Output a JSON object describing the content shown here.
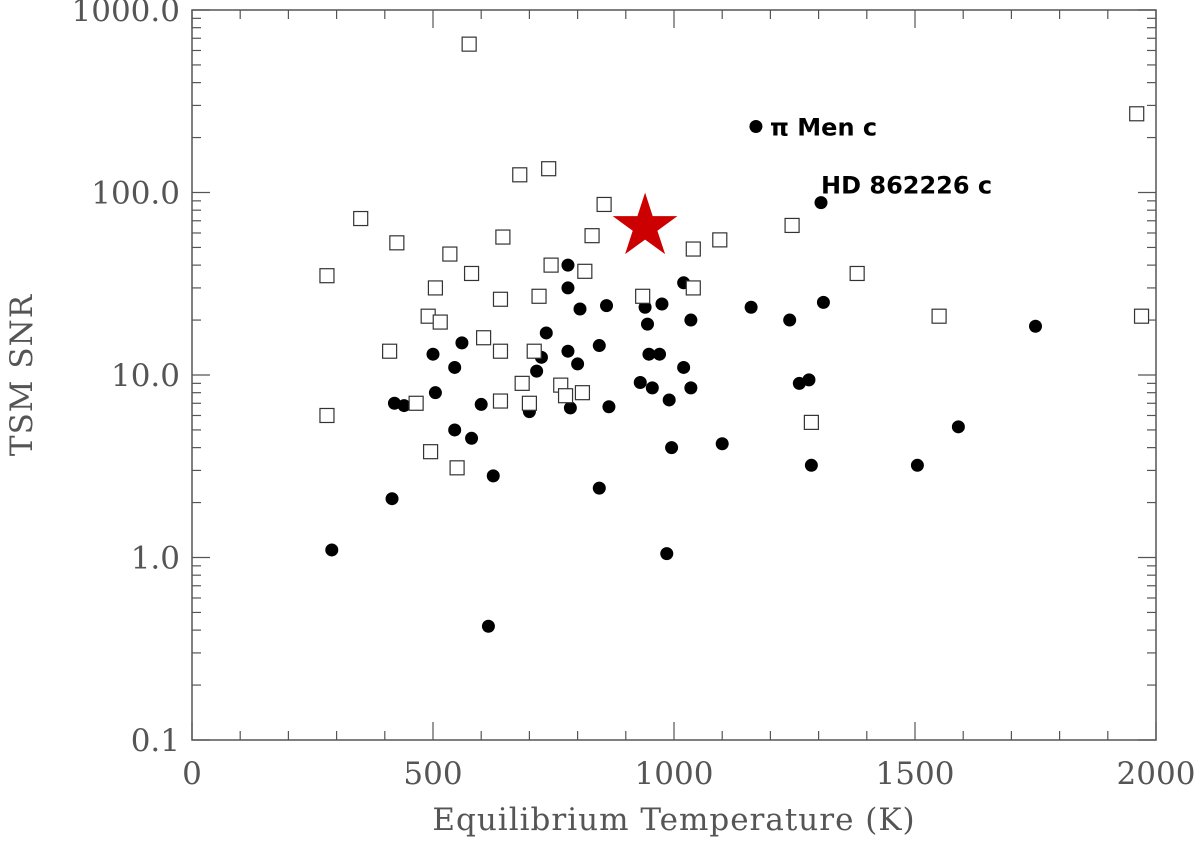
{
  "chart_data": {
    "type": "scatter",
    "xlabel": "Equilibrium Temperature (K)",
    "ylabel": "TSM SNR",
    "xlim": [
      0,
      2000
    ],
    "ylim": [
      0.1,
      1000
    ],
    "yscale": "log",
    "x_ticks": [
      0,
      500,
      1000,
      1500,
      2000
    ],
    "x_tick_labels": [
      "0",
      "500",
      "1000",
      "1500",
      "2000"
    ],
    "y_ticks": [
      0.1,
      1,
      10,
      100,
      1000
    ],
    "y_tick_labels": [
      "0.1",
      "1.0",
      "10.0",
      "100.0",
      "1000.0"
    ],
    "grid": false,
    "colors": {
      "axis": "#555555",
      "points": "#000000",
      "star": "#cc0000"
    },
    "series": [
      {
        "marker": "filled-circle",
        "points": [
          [
            290,
            1.1
          ],
          [
            415,
            2.1
          ],
          [
            420,
            7.0
          ],
          [
            440,
            6.8
          ],
          [
            500,
            13.0
          ],
          [
            505,
            8.0
          ],
          [
            545,
            11.0
          ],
          [
            560,
            15.0
          ],
          [
            545,
            5.0
          ],
          [
            580,
            4.5
          ],
          [
            600,
            6.9
          ],
          [
            625,
            2.8
          ],
          [
            615,
            0.42
          ],
          [
            700,
            6.3
          ],
          [
            715,
            10.5
          ],
          [
            725,
            12.5
          ],
          [
            735,
            17.0
          ],
          [
            780,
            40.0
          ],
          [
            780,
            30.0
          ],
          [
            780,
            13.5
          ],
          [
            785,
            6.6
          ],
          [
            800,
            11.5
          ],
          [
            805,
            23.0
          ],
          [
            845,
            14.5
          ],
          [
            845,
            2.4
          ],
          [
            860,
            24.0
          ],
          [
            865,
            6.7
          ],
          [
            930,
            9.1
          ],
          [
            940,
            23.5
          ],
          [
            945,
            19.0
          ],
          [
            948,
            13.0
          ],
          [
            955,
            8.5
          ],
          [
            970,
            13.0
          ],
          [
            975,
            24.5
          ],
          [
            985,
            1.05
          ],
          [
            990,
            7.3
          ],
          [
            995,
            4.0
          ],
          [
            1020,
            32.0
          ],
          [
            1020,
            11.0
          ],
          [
            1035,
            20.0
          ],
          [
            1035,
            8.5
          ],
          [
            1100,
            4.2
          ],
          [
            1160,
            23.5
          ],
          [
            1170,
            230.0
          ],
          [
            1240,
            20.0
          ],
          [
            1260,
            9.0
          ],
          [
            1280,
            9.4
          ],
          [
            1285,
            3.2
          ],
          [
            1305,
            88.0
          ],
          [
            1310,
            25.0
          ],
          [
            1505,
            3.2
          ],
          [
            1590,
            5.2
          ],
          [
            1750,
            18.5
          ]
        ]
      },
      {
        "marker": "open-square",
        "points": [
          [
            280,
            35.0
          ],
          [
            280,
            6.0
          ],
          [
            350,
            72.0
          ],
          [
            410,
            13.5
          ],
          [
            425,
            53.0
          ],
          [
            465,
            7.0
          ],
          [
            490,
            21.0
          ],
          [
            495,
            3.8
          ],
          [
            505,
            30.0
          ],
          [
            515,
            19.5
          ],
          [
            535,
            46.0
          ],
          [
            550,
            3.1
          ],
          [
            575,
            650.0
          ],
          [
            580,
            36.0
          ],
          [
            605,
            16.0
          ],
          [
            640,
            13.5
          ],
          [
            640,
            7.2
          ],
          [
            640,
            26.0
          ],
          [
            645,
            57.0
          ],
          [
            680,
            125.0
          ],
          [
            685,
            9.0
          ],
          [
            700,
            7.0
          ],
          [
            710,
            13.5
          ],
          [
            720,
            27.0
          ],
          [
            740,
            135.0
          ],
          [
            745,
            40.0
          ],
          [
            765,
            8.8
          ],
          [
            775,
            7.7
          ],
          [
            810,
            8.0
          ],
          [
            815,
            37.0
          ],
          [
            830,
            58.0
          ],
          [
            855,
            86.0
          ],
          [
            935,
            27.0
          ],
          [
            1040,
            49.0
          ],
          [
            1040,
            30.0
          ],
          [
            1095,
            55.0
          ],
          [
            1245,
            66.0
          ],
          [
            1285,
            5.5
          ],
          [
            1380,
            36.0
          ],
          [
            1550,
            21.0
          ],
          [
            1960,
            270.0
          ],
          [
            1970,
            21.0
          ]
        ]
      },
      {
        "marker": "star",
        "points": [
          [
            940,
            65.0
          ]
        ]
      }
    ],
    "annotations": [
      {
        "text": "π Men c",
        "x": 1170,
        "y": 230
      },
      {
        "text": "HD 862226 c",
        "x": 1305,
        "y": 88
      }
    ]
  }
}
